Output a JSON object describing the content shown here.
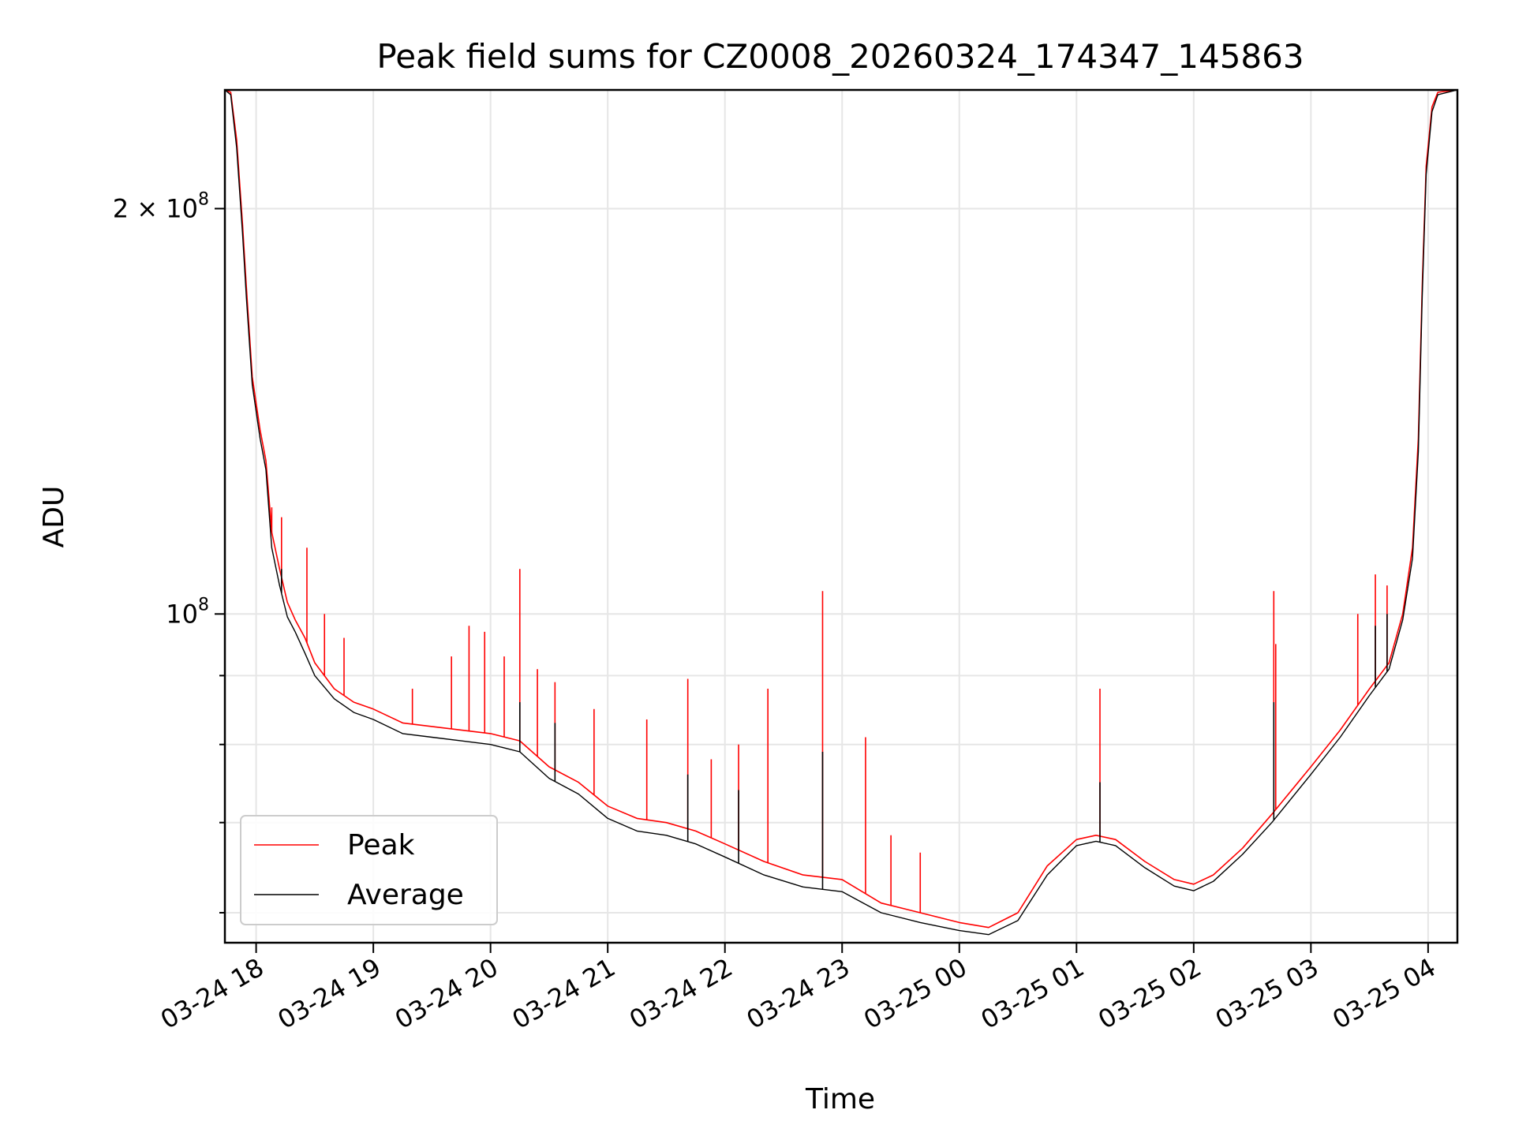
{
  "chart_data": {
    "type": "line",
    "title": "Peak field sums for CZ0008_20260324_174347_145863",
    "xlabel": "Time",
    "ylabel": "ADU",
    "y_scale": "log",
    "grid": true,
    "legend_position": "lower-left",
    "xlim": [
      "2026-03-24 17:44",
      "2026-03-25 04:15"
    ],
    "ylim": [
      57000000,
      245000000
    ],
    "x_ticks": [
      {
        "t": "2026-03-24 18:00",
        "label": "03-24 18"
      },
      {
        "t": "2026-03-24 19:00",
        "label": "03-24 19"
      },
      {
        "t": "2026-03-24 20:00",
        "label": "03-24 20"
      },
      {
        "t": "2026-03-24 21:00",
        "label": "03-24 21"
      },
      {
        "t": "2026-03-24 22:00",
        "label": "03-24 22"
      },
      {
        "t": "2026-03-24 23:00",
        "label": "03-24 23"
      },
      {
        "t": "2026-03-25 00:00",
        "label": "03-25 00"
      },
      {
        "t": "2026-03-25 01:00",
        "label": "03-25 01"
      },
      {
        "t": "2026-03-25 02:00",
        "label": "03-25 02"
      },
      {
        "t": "2026-03-25 03:00",
        "label": "03-25 03"
      },
      {
        "t": "2026-03-25 04:00",
        "label": "03-25 04"
      }
    ],
    "y_major_ticks": [
      {
        "v": 100000000,
        "label": "10",
        "sup": "8"
      },
      {
        "v": 200000000,
        "label": "2 × 10",
        "sup": "8"
      }
    ],
    "y_minor_ticks": [
      60000000,
      70000000,
      80000000,
      90000000
    ],
    "series": [
      {
        "name": "Peak",
        "color": "#ff0000",
        "points": [
          [
            "2026-03-24 17:44",
            245000000
          ],
          [
            "2026-03-24 17:47",
            244000000
          ],
          [
            "2026-03-24 17:50",
            225000000
          ],
          [
            "2026-03-24 17:53",
            195000000
          ],
          [
            "2026-03-24 17:55",
            175000000
          ],
          [
            "2026-03-24 17:58",
            150000000
          ],
          [
            "2026-03-24 18:02",
            137000000
          ],
          [
            "2026-03-24 18:05",
            130000000
          ],
          [
            "2026-03-24 18:08",
            115000000
          ],
          [
            "2026-03-24 18:12",
            108000000
          ],
          [
            "2026-03-24 18:16",
            102000000
          ],
          [
            "2026-03-24 18:20",
            99000000
          ],
          [
            "2026-03-24 18:25",
            96000000
          ],
          [
            "2026-03-24 18:30",
            92000000
          ],
          [
            "2026-03-24 18:40",
            88000000
          ],
          [
            "2026-03-24 18:50",
            86000000
          ],
          [
            "2026-03-24 19:00",
            85000000
          ],
          [
            "2026-03-24 19:15",
            83000000
          ],
          [
            "2026-03-24 19:30",
            82500000
          ],
          [
            "2026-03-24 19:45",
            82000000
          ],
          [
            "2026-03-24 20:00",
            81500000
          ],
          [
            "2026-03-24 20:15",
            80500000
          ],
          [
            "2026-03-24 20:30",
            77000000
          ],
          [
            "2026-03-24 20:45",
            75000000
          ],
          [
            "2026-03-24 21:00",
            72000000
          ],
          [
            "2026-03-24 21:15",
            70500000
          ],
          [
            "2026-03-24 21:30",
            70000000
          ],
          [
            "2026-03-24 21:45",
            69000000
          ],
          [
            "2026-03-24 22:00",
            67500000
          ],
          [
            "2026-03-24 22:20",
            65500000
          ],
          [
            "2026-03-24 22:40",
            64000000
          ],
          [
            "2026-03-24 23:00",
            63500000
          ],
          [
            "2026-03-24 23:20",
            61000000
          ],
          [
            "2026-03-24 23:40",
            60000000
          ],
          [
            "2026-03-25 00:00",
            59000000
          ],
          [
            "2026-03-25 00:15",
            58500000
          ],
          [
            "2026-03-25 00:30",
            60000000
          ],
          [
            "2026-03-25 00:45",
            65000000
          ],
          [
            "2026-03-25 01:00",
            68000000
          ],
          [
            "2026-03-25 01:10",
            68500000
          ],
          [
            "2026-03-25 01:20",
            68000000
          ],
          [
            "2026-03-25 01:35",
            65500000
          ],
          [
            "2026-03-25 01:50",
            63500000
          ],
          [
            "2026-03-25 02:00",
            63000000
          ],
          [
            "2026-03-25 02:10",
            64000000
          ],
          [
            "2026-03-25 02:25",
            67000000
          ],
          [
            "2026-03-25 02:40",
            71000000
          ],
          [
            "2026-03-25 03:00",
            77000000
          ],
          [
            "2026-03-25 03:15",
            82000000
          ],
          [
            "2026-03-25 03:30",
            88000000
          ],
          [
            "2026-03-25 03:40",
            92000000
          ],
          [
            "2026-03-25 03:47",
            100000000
          ],
          [
            "2026-03-25 03:52",
            112000000
          ],
          [
            "2026-03-25 03:55",
            135000000
          ],
          [
            "2026-03-25 03:57",
            175000000
          ],
          [
            "2026-03-25 03:59",
            215000000
          ],
          [
            "2026-03-25 04:02",
            238000000
          ],
          [
            "2026-03-25 04:05",
            244000000
          ],
          [
            "2026-03-25 04:15",
            245000000
          ]
        ],
        "spikes": [
          [
            "2026-03-24 18:08",
            120000000
          ],
          [
            "2026-03-24 18:13",
            118000000
          ],
          [
            "2026-03-24 18:26",
            112000000
          ],
          [
            "2026-03-24 18:35",
            100000000
          ],
          [
            "2026-03-24 18:45",
            96000000
          ],
          [
            "2026-03-24 19:20",
            88000000
          ],
          [
            "2026-03-24 19:40",
            93000000
          ],
          [
            "2026-03-24 19:49",
            98000000
          ],
          [
            "2026-03-24 19:57",
            97000000
          ],
          [
            "2026-03-24 20:07",
            93000000
          ],
          [
            "2026-03-24 20:15",
            108000000
          ],
          [
            "2026-03-24 20:24",
            91000000
          ],
          [
            "2026-03-24 20:33",
            89000000
          ],
          [
            "2026-03-24 20:53",
            85000000
          ],
          [
            "2026-03-24 21:20",
            83500000
          ],
          [
            "2026-03-24 21:41",
            89500000
          ],
          [
            "2026-03-24 21:53",
            78000000
          ],
          [
            "2026-03-24 22:07",
            80000000
          ],
          [
            "2026-03-24 22:22",
            88000000
          ],
          [
            "2026-03-24 22:50",
            104000000
          ],
          [
            "2026-03-24 23:12",
            81000000
          ],
          [
            "2026-03-24 23:25",
            68500000
          ],
          [
            "2026-03-24 23:40",
            66500000
          ],
          [
            "2026-03-25 01:12",
            88000000
          ],
          [
            "2026-03-25 02:41",
            104000000
          ],
          [
            "2026-03-25 02:42",
            95000000
          ],
          [
            "2026-03-25 03:24",
            100000000
          ],
          [
            "2026-03-25 03:33",
            107000000
          ],
          [
            "2026-03-25 03:39",
            105000000
          ]
        ]
      },
      {
        "name": "Average",
        "color": "#000000",
        "points": [
          [
            "2026-03-24 17:44",
            245000000
          ],
          [
            "2026-03-24 17:47",
            243000000
          ],
          [
            "2026-03-24 17:50",
            222000000
          ],
          [
            "2026-03-24 17:53",
            192000000
          ],
          [
            "2026-03-24 17:55",
            172000000
          ],
          [
            "2026-03-24 17:58",
            148000000
          ],
          [
            "2026-03-24 18:02",
            135000000
          ],
          [
            "2026-03-24 18:05",
            128000000
          ],
          [
            "2026-03-24 18:08",
            112000000
          ],
          [
            "2026-03-24 18:12",
            105000000
          ],
          [
            "2026-03-24 18:16",
            99500000
          ],
          [
            "2026-03-24 18:20",
            97000000
          ],
          [
            "2026-03-24 18:25",
            93500000
          ],
          [
            "2026-03-24 18:30",
            90000000
          ],
          [
            "2026-03-24 18:40",
            86500000
          ],
          [
            "2026-03-24 18:50",
            84500000
          ],
          [
            "2026-03-24 19:00",
            83500000
          ],
          [
            "2026-03-24 19:15",
            81500000
          ],
          [
            "2026-03-24 19:30",
            81000000
          ],
          [
            "2026-03-24 19:45",
            80500000
          ],
          [
            "2026-03-24 20:00",
            80000000
          ],
          [
            "2026-03-24 20:15",
            79000000
          ],
          [
            "2026-03-24 20:30",
            75500000
          ],
          [
            "2026-03-24 20:45",
            73500000
          ],
          [
            "2026-03-24 21:00",
            70500000
          ],
          [
            "2026-03-24 21:15",
            69000000
          ],
          [
            "2026-03-24 21:30",
            68500000
          ],
          [
            "2026-03-24 21:45",
            67500000
          ],
          [
            "2026-03-24 22:00",
            66000000
          ],
          [
            "2026-03-24 22:20",
            64000000
          ],
          [
            "2026-03-24 22:40",
            62700000
          ],
          [
            "2026-03-24 23:00",
            62200000
          ],
          [
            "2026-03-24 23:20",
            60000000
          ],
          [
            "2026-03-24 23:40",
            59000000
          ],
          [
            "2026-03-25 00:00",
            58200000
          ],
          [
            "2026-03-25 00:15",
            57800000
          ],
          [
            "2026-03-25 00:30",
            59200000
          ],
          [
            "2026-03-25 00:45",
            64000000
          ],
          [
            "2026-03-25 01:00",
            67300000
          ],
          [
            "2026-03-25 01:10",
            67800000
          ],
          [
            "2026-03-25 01:20",
            67300000
          ],
          [
            "2026-03-25 01:35",
            64800000
          ],
          [
            "2026-03-25 01:50",
            62800000
          ],
          [
            "2026-03-25 02:00",
            62300000
          ],
          [
            "2026-03-25 02:10",
            63300000
          ],
          [
            "2026-03-25 02:25",
            66300000
          ],
          [
            "2026-03-25 02:40",
            70000000
          ],
          [
            "2026-03-25 03:00",
            76000000
          ],
          [
            "2026-03-25 03:15",
            81000000
          ],
          [
            "2026-03-25 03:30",
            87000000
          ],
          [
            "2026-03-25 03:40",
            91000000
          ],
          [
            "2026-03-25 03:47",
            99000000
          ],
          [
            "2026-03-25 03:52",
            110000000
          ],
          [
            "2026-03-25 03:55",
            132000000
          ],
          [
            "2026-03-25 03:57",
            172000000
          ],
          [
            "2026-03-25 03:59",
            212000000
          ],
          [
            "2026-03-25 04:02",
            236000000
          ],
          [
            "2026-03-25 04:05",
            243000000
          ],
          [
            "2026-03-25 04:15",
            245000000
          ]
        ],
        "spikes": [
          [
            "2026-03-24 18:08",
            112000000
          ],
          [
            "2026-03-24 18:13",
            108000000
          ],
          [
            "2026-03-24 20:15",
            86000000
          ],
          [
            "2026-03-24 20:33",
            83000000
          ],
          [
            "2026-03-24 21:41",
            76000000
          ],
          [
            "2026-03-24 22:07",
            74000000
          ],
          [
            "2026-03-24 22:50",
            79000000
          ],
          [
            "2026-03-25 01:12",
            75000000
          ],
          [
            "2026-03-25 02:41",
            86000000
          ],
          [
            "2026-03-25 03:33",
            98000000
          ],
          [
            "2026-03-25 03:39",
            100000000
          ]
        ]
      }
    ]
  }
}
